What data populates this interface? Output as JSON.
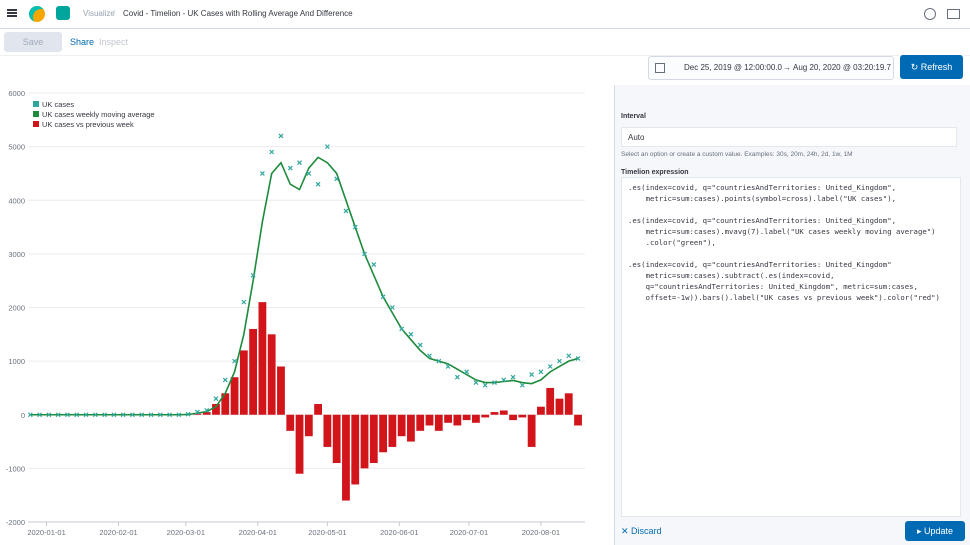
{
  "header": {
    "app": "Visualize",
    "title": "Covid - Timelion - UK Cases with Rolling Average And Difference"
  },
  "toolbar": {
    "save": "Save",
    "share": "Share",
    "inspect": "Inspect"
  },
  "timepicker": {
    "start": "Dec 25, 2019 @ 12:00:00.0",
    "arrow": "→",
    "end": "Aug 20, 2020 @ 03:20:19.7",
    "refresh": "Refresh"
  },
  "editor": {
    "interval_label": "Interval",
    "interval_value": "Auto",
    "interval_help": "Select an option or create a custom value. Examples: 30s, 20m, 24h, 2d, 1w, 1M",
    "expression_label": "Timelion expression",
    "expression": [
      [
        ".es(index=covid, q=\"countriesAndTerritories: United_Kingdom\",",
        "    metric=sum:cases).points(symbol=cross).label(\"UK cases\"),"
      ],
      [
        ".es(index=covid, q=\"countriesAndTerritories: United_Kingdom\",",
        "    metric=sum:cases).mvavg(7).label(\"UK cases weekly moving average\")",
        "    .color(\"green\"),"
      ],
      [
        ".es(index=covid, q=\"countriesAndTerritories: United_Kingdom\"",
        "    metric=sum:cases).subtract(.es(index=covid,",
        "    q=\"countriesAndTerritories: United_Kingdom\", metric=sum:cases,",
        "    offset=-1w)).bars().label(\"UK cases vs previous week\").color(\"red\")"
      ]
    ],
    "discard": "Discard",
    "update": "Update"
  },
  "chart_data": {
    "type": "combo",
    "x": [
      "2019-12-25",
      "2019-12-29",
      "2020-01-02",
      "2020-01-06",
      "2020-01-10",
      "2020-01-14",
      "2020-01-18",
      "2020-01-22",
      "2020-01-26",
      "2020-01-30",
      "2020-02-03",
      "2020-02-07",
      "2020-02-11",
      "2020-02-15",
      "2020-02-19",
      "2020-02-23",
      "2020-02-27",
      "2020-03-02",
      "2020-03-06",
      "2020-03-10",
      "2020-03-14",
      "2020-03-18",
      "2020-03-22",
      "2020-03-26",
      "2020-03-30",
      "2020-04-03",
      "2020-04-07",
      "2020-04-11",
      "2020-04-15",
      "2020-04-19",
      "2020-04-23",
      "2020-04-27",
      "2020-05-01",
      "2020-05-05",
      "2020-05-09",
      "2020-05-13",
      "2020-05-17",
      "2020-05-21",
      "2020-05-25",
      "2020-05-29",
      "2020-06-02",
      "2020-06-06",
      "2020-06-10",
      "2020-06-14",
      "2020-06-18",
      "2020-06-22",
      "2020-06-26",
      "2020-06-30",
      "2020-07-04",
      "2020-07-08",
      "2020-07-12",
      "2020-07-16",
      "2020-07-20",
      "2020-07-24",
      "2020-07-28",
      "2020-08-01",
      "2020-08-05",
      "2020-08-09",
      "2020-08-13",
      "2020-08-17"
    ],
    "series": [
      {
        "name": "UK cases",
        "type": "points",
        "color": "#2fa69b",
        "values": [
          0,
          0,
          0,
          0,
          0,
          0,
          0,
          0,
          0,
          0,
          0,
          0,
          0,
          0,
          0,
          0,
          0,
          10,
          50,
          80,
          300,
          650,
          1000,
          2100,
          2600,
          4500,
          4900,
          5200,
          4600,
          4700,
          4500,
          4300,
          5000,
          4400,
          3800,
          3500,
          3000,
          2800,
          2200,
          2000,
          1600,
          1500,
          1300,
          1100,
          1000,
          900,
          700,
          800,
          600,
          550,
          600,
          650,
          700,
          550,
          750,
          800,
          900,
          1000,
          1100,
          1050
        ]
      },
      {
        "name": "UK cases weekly moving average",
        "type": "line",
        "color": "#1e8a3c",
        "values": [
          0,
          0,
          0,
          0,
          0,
          0,
          0,
          0,
          0,
          0,
          0,
          0,
          0,
          0,
          0,
          0,
          0,
          5,
          30,
          60,
          150,
          400,
          800,
          1500,
          2500,
          3600,
          4500,
          4700,
          4300,
          4200,
          4600,
          4800,
          4700,
          4500,
          4000,
          3500,
          3000,
          2600,
          2200,
          1900,
          1600,
          1400,
          1200,
          1050,
          1000,
          950,
          850,
          750,
          650,
          600,
          600,
          620,
          640,
          600,
          580,
          650,
          800,
          900,
          1000,
          1050
        ]
      },
      {
        "name": "UK cases vs previous week",
        "type": "bars",
        "color": "#d2141b",
        "values": [
          0,
          0,
          0,
          0,
          0,
          0,
          0,
          0,
          0,
          0,
          0,
          0,
          0,
          0,
          0,
          0,
          0,
          0,
          20,
          50,
          200,
          400,
          700,
          1200,
          1600,
          2100,
          1500,
          900,
          -300,
          -1100,
          -400,
          200,
          -600,
          -900,
          -1600,
          -1300,
          -1000,
          -900,
          -700,
          -600,
          -400,
          -500,
          -300,
          -200,
          -300,
          -150,
          -200,
          -100,
          -150,
          -50,
          50,
          80,
          -100,
          -50,
          -600,
          150,
          500,
          300,
          400,
          -200
        ]
      }
    ],
    "xlim": [
      "2019-12-24",
      "2020-08-20"
    ],
    "xticks": [
      "2020-01-01",
      "2020-02-01",
      "2020-03-01",
      "2020-04-01",
      "2020-05-01",
      "2020-06-01",
      "2020-07-01",
      "2020-08-01"
    ],
    "ylim": [
      -2000,
      6000
    ],
    "yticks": [
      -2000,
      -1000,
      0,
      1000,
      2000,
      3000,
      4000,
      5000,
      6000
    ],
    "grid": true,
    "legend": "top-left"
  }
}
